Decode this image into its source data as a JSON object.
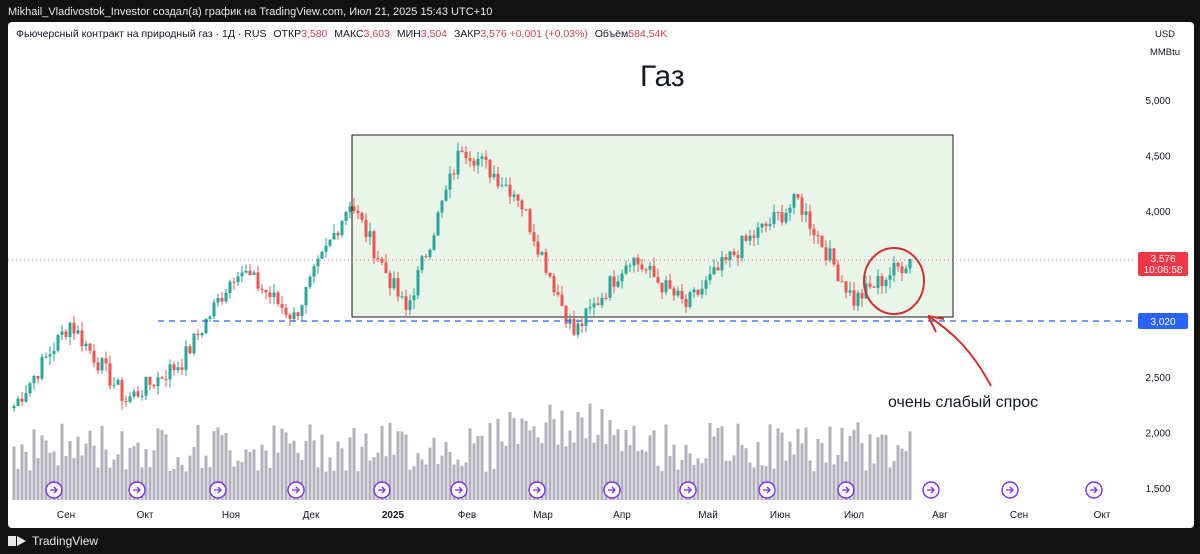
{
  "header_text": "Mikhail_Vladivostok_Investor создал(а) график на TradingView.com, Июл 21, 2025 15:43 UTC+10",
  "footer_brand": "TradingView",
  "legend": {
    "symbol": "Фьючерсный контракт на природный газ · 1Д · RUS",
    "open_label": "ОТКР",
    "open": "3,580",
    "high_label": "МАКС",
    "high": "3,603",
    "low_label": "МИН",
    "low": "3,504",
    "close_label": "ЗАКР",
    "close": "3,576",
    "change": "+0,001 (+0,03%)",
    "volume_label": "Объём",
    "volume": "584,54K"
  },
  "units": {
    "currency": "USD",
    "unit": "MMBtu"
  },
  "colors": {
    "up": "#26a69a",
    "down": "#ef5350",
    "volume": "#b2b2ba",
    "box_fill": "#e9f5e8",
    "support": "#2962ff",
    "annotation": "#d32f2f",
    "price_tag": "#f23645",
    "support_tag": "#2962ff"
  },
  "chart_data": {
    "type": "candlestick",
    "title": "Газ",
    "y_ticks": [
      "5,000",
      "4,500",
      "4,000",
      "3,500",
      "3,000",
      "2,500",
      "2,000",
      "1,500"
    ],
    "y_tick_values": [
      5.0,
      4.5,
      4.0,
      3.5,
      3.0,
      2.5,
      2.0,
      1.5
    ],
    "ylim": [
      1.38,
      5.5
    ],
    "x_ticks": [
      "Сен",
      "Окт",
      "Ноя",
      "Дек",
      "2025",
      "Фев",
      "Мар",
      "Апр",
      "Май",
      "Июн",
      "Июл",
      "Авг",
      "Сен",
      "Окт"
    ],
    "current_price": {
      "value": 3.576,
      "label": "3,576",
      "timer": "10:06:58"
    },
    "support_level": {
      "value": 3.02,
      "label": "3,020"
    },
    "range_box": {
      "x_start_label": "Дек",
      "price_low": 3.05,
      "price_high": 4.7
    },
    "annotation": "очень слабый спрос",
    "key_points": [
      {
        "date": "Сен",
        "price": 2.25
      },
      {
        "date": "Окт",
        "price": 3.0
      },
      {
        "date": "Ноя",
        "price": 2.3
      },
      {
        "date": "Ноя",
        "price": 2.65
      },
      {
        "date": "Дек",
        "price": 3.5
      },
      {
        "date": "Дек",
        "price": 3.05
      },
      {
        "date": "2025",
        "price": 4.1
      },
      {
        "date": "Фев",
        "price": 3.1
      },
      {
        "date": "Мар",
        "price": 4.6
      },
      {
        "date": "Апр",
        "price": 4.15
      },
      {
        "date": "Апр",
        "price": 2.9
      },
      {
        "date": "Май",
        "price": 3.6
      },
      {
        "date": "Июн",
        "price": 3.15
      },
      {
        "date": "Июн",
        "price": 3.7
      },
      {
        "date": "Июл",
        "price": 4.1
      },
      {
        "date": "Июл",
        "price": 3.2
      },
      {
        "date": "Июл",
        "price": 3.576
      }
    ]
  }
}
